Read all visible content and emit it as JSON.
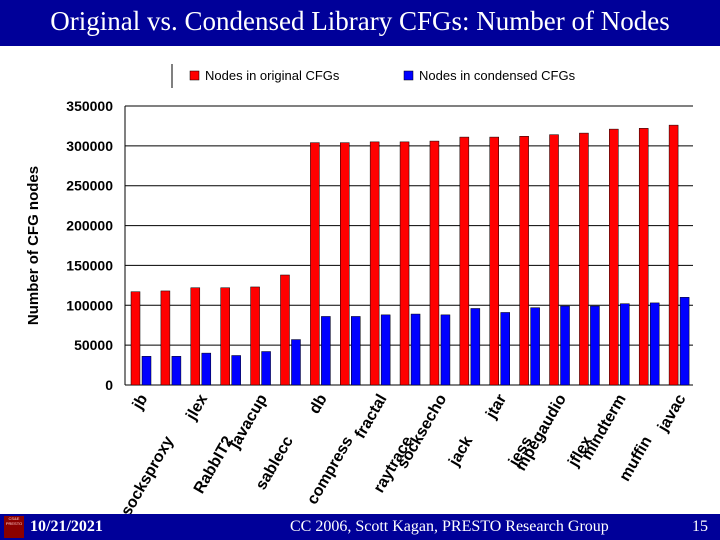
{
  "slide": {
    "title": "Original vs. Condensed Library CFGs: Number of Nodes",
    "footer_date": "10/21/2021",
    "footer_credit": "CC 2006, Scott Kagan, PRESTO Research Group",
    "page_number": "15",
    "logo_text": "CS&E PRESTO"
  },
  "colors": {
    "title_bar": "#000099",
    "original": "#ff0000",
    "condensed": "#0000ff"
  },
  "chart_data": {
    "type": "bar",
    "title": "",
    "xlabel": "",
    "ylabel": "Number of CFG nodes",
    "ylim": [
      0,
      350000
    ],
    "yticks": [
      0,
      50000,
      100000,
      150000,
      200000,
      250000,
      300000,
      350000
    ],
    "grid": true,
    "legend_position": "top",
    "categories": [
      "jb",
      "socksproxy",
      "jlex",
      "RabbIT2",
      "javacup",
      "sablecc",
      "db",
      "compress",
      "fractal",
      "raytrace",
      "socksecho",
      "jack",
      "jtar",
      "jess",
      "mpegaudio",
      "jflex",
      "mindterm",
      "muffin",
      "javac"
    ],
    "series": [
      {
        "name": "Nodes in original CFGs",
        "color": "#ff0000",
        "values": [
          117000,
          118000,
          122000,
          122000,
          123000,
          138000,
          304000,
          304000,
          305000,
          305000,
          306000,
          311000,
          311000,
          312000,
          314000,
          316000,
          321000,
          322000,
          326000
        ]
      },
      {
        "name": "Nodes in condensed CFGs",
        "color": "#0000ff",
        "values": [
          36000,
          36000,
          40000,
          37000,
          42000,
          57000,
          86000,
          86000,
          88000,
          89000,
          88000,
          96000,
          91000,
          97000,
          99000,
          99000,
          102000,
          103000,
          110000
        ]
      }
    ]
  }
}
